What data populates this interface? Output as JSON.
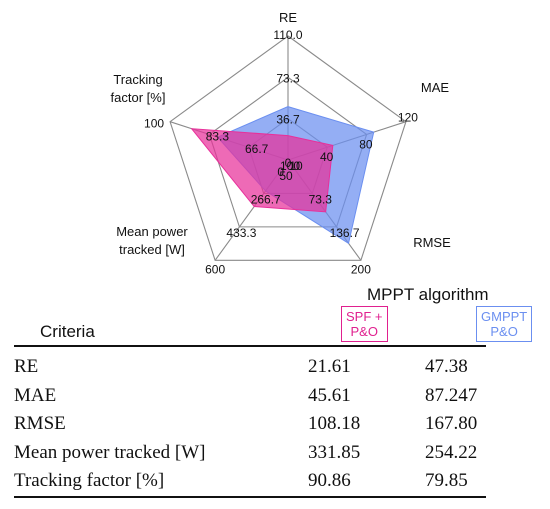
{
  "chart_data": {
    "type": "radar",
    "axes": [
      {
        "label": "RE",
        "ticks": [
          "0",
          "36.7",
          "73.3",
          "110.0"
        ],
        "min": 0,
        "max": 110
      },
      {
        "label": "MAE",
        "ticks": [
          "0",
          "40",
          "80",
          "120"
        ],
        "min": 0,
        "max": 120
      },
      {
        "label": "RMSE",
        "ticks": [
          "10",
          "73.3",
          "136.7",
          "200"
        ],
        "min": 10,
        "max": 200
      },
      {
        "label": "Mean power tracked [W]",
        "label_lines": [
          "Mean power",
          "tracked [W]"
        ],
        "ticks": [
          "100",
          "266.7",
          "433.3",
          "600"
        ],
        "min": 100,
        "max": 600
      },
      {
        "label": "Tracking factor [%]",
        "label_lines": [
          "Tracking",
          "factor [%]"
        ],
        "ticks": [
          "50",
          "66.7",
          "83.3",
          "100"
        ],
        "min": 50,
        "max": 100
      }
    ],
    "series": [
      {
        "name": "GMPPT P&O",
        "values": [
          47.38,
          87.247,
          167.8,
          254.22,
          79.85
        ],
        "color": "#6b8ff0"
      },
      {
        "name": "SPF + P&O",
        "values": [
          21.61,
          45.61,
          108.18,
          331.85,
          90.86
        ],
        "color": "#e8309a"
      }
    ]
  },
  "table": {
    "group_header": "MPPT algorithm",
    "criteria_header": "Criteria",
    "col1_label": [
      "SPF +",
      "P&O"
    ],
    "col2_label": [
      "GMPPT",
      "P&O"
    ],
    "col1_color": "#e0208f",
    "col2_color": "#6b8ff0",
    "rows": [
      {
        "criterion": "RE",
        "v1": "21.61",
        "v2": "47.38"
      },
      {
        "criterion": "MAE",
        "v1": "45.61",
        "v2": "87.247"
      },
      {
        "criterion": "RMSE",
        "v1": "108.18",
        "v2": "167.80"
      },
      {
        "criterion": "Mean power tracked [W]",
        "v1": "331.85",
        "v2": "254.22"
      },
      {
        "criterion": "Tracking factor [%]",
        "v1": "90.86",
        "v2": "79.85"
      }
    ]
  }
}
